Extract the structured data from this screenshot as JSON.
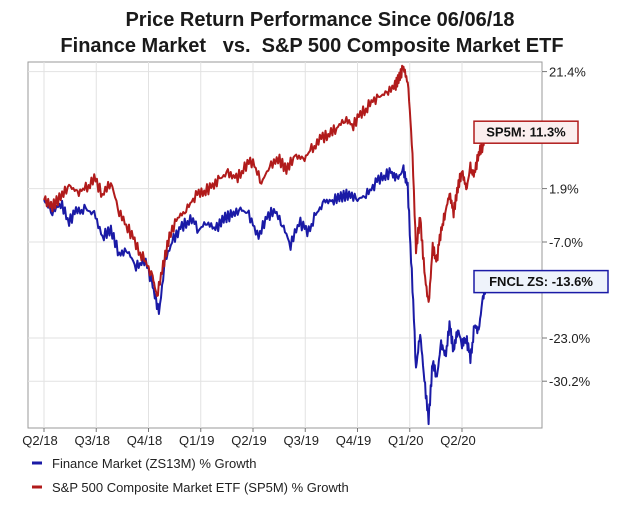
{
  "chart_data": {
    "type": "line",
    "title": "Price Return Performance Since 06/06/18",
    "subtitle": "Finance Market   vs.  S&P 500 Composite Market ETF",
    "y_ticks": [
      {
        "value": 21.4,
        "label": "21.4%"
      },
      {
        "value": 1.9,
        "label": "1.9%"
      },
      {
        "value": -7.0,
        "label": "-7.0%"
      },
      {
        "value": -23.0,
        "label": "-23.0%"
      },
      {
        "value": -30.2,
        "label": "-30.2%"
      }
    ],
    "ylim": [
      -38,
      23
    ],
    "x_ticks": [
      "Q2/18",
      "Q3/18",
      "Q4/18",
      "Q1/19",
      "Q2/19",
      "Q3/19",
      "Q4/19",
      "Q1/20",
      "Q2/20"
    ],
    "x_tick_positions": [
      0,
      0.125,
      0.25,
      0.375,
      0.5,
      0.625,
      0.75,
      0.875,
      1.0
    ],
    "grid": true,
    "legend_position": "bottom-left",
    "series": [
      {
        "name": "Finance Market (ZS13M) % Growth",
        "color": "#1a1aa6",
        "callout": "FNCL ZS: -13.6%",
        "points": [
          [
            0.0,
            0.0
          ],
          [
            0.02,
            -2.0
          ],
          [
            0.04,
            -0.5
          ],
          [
            0.06,
            -3.5
          ],
          [
            0.08,
            -1.8
          ],
          [
            0.1,
            -1.5
          ],
          [
            0.12,
            -2.5
          ],
          [
            0.14,
            -6.0
          ],
          [
            0.16,
            -5.0
          ],
          [
            0.18,
            -9.0
          ],
          [
            0.2,
            -8.5
          ],
          [
            0.22,
            -11.0
          ],
          [
            0.24,
            -10.0
          ],
          [
            0.26,
            -14.0
          ],
          [
            0.275,
            -19.0
          ],
          [
            0.29,
            -10.0
          ],
          [
            0.31,
            -6.5
          ],
          [
            0.33,
            -4.5
          ],
          [
            0.35,
            -3.0
          ],
          [
            0.37,
            -5.0
          ],
          [
            0.39,
            -3.5
          ],
          [
            0.41,
            -5.0
          ],
          [
            0.43,
            -3.0
          ],
          [
            0.45,
            -2.5
          ],
          [
            0.47,
            -1.5
          ],
          [
            0.49,
            -2.5
          ],
          [
            0.51,
            -6.0
          ],
          [
            0.53,
            -3.5
          ],
          [
            0.55,
            -1.5
          ],
          [
            0.57,
            -4.0
          ],
          [
            0.59,
            -7.5
          ],
          [
            0.61,
            -3.5
          ],
          [
            0.63,
            -5.5
          ],
          [
            0.65,
            -2.5
          ],
          [
            0.67,
            -0.5
          ],
          [
            0.69,
            0.0
          ],
          [
            0.71,
            0.5
          ],
          [
            0.73,
            1.0
          ],
          [
            0.75,
            0.0
          ],
          [
            0.77,
            1.0
          ],
          [
            0.79,
            2.5
          ],
          [
            0.81,
            4.0
          ],
          [
            0.83,
            4.5
          ],
          [
            0.845,
            3.5
          ],
          [
            0.86,
            5.0
          ],
          [
            0.87,
            2.0
          ],
          [
            0.88,
            -12.0
          ],
          [
            0.89,
            -28.0
          ],
          [
            0.9,
            -22.0
          ],
          [
            0.91,
            -30.2
          ],
          [
            0.92,
            -36.5
          ],
          [
            0.93,
            -27.0
          ],
          [
            0.94,
            -29.5
          ],
          [
            0.95,
            -24.0
          ],
          [
            0.96,
            -26.0
          ],
          [
            0.97,
            -21.0
          ],
          [
            0.98,
            -25.0
          ],
          [
            0.99,
            -21.5
          ],
          [
            1.0,
            -24.0
          ],
          [
            1.01,
            -23.0
          ],
          [
            1.02,
            -26.5
          ],
          [
            1.03,
            -21.0
          ],
          [
            1.04,
            -22.0
          ],
          [
            1.05,
            -16.0
          ],
          [
            1.06,
            -14.0
          ],
          [
            1.07,
            -13.6
          ]
        ]
      },
      {
        "name": "S&P 500 Composite Market ETF (SP5M) % Growth",
        "color": "#b11b1b",
        "callout": "SP5M: 11.3%",
        "points": [
          [
            0.0,
            0.0
          ],
          [
            0.02,
            -1.0
          ],
          [
            0.04,
            0.5
          ],
          [
            0.06,
            2.5
          ],
          [
            0.08,
            1.0
          ],
          [
            0.1,
            2.0
          ],
          [
            0.12,
            3.5
          ],
          [
            0.14,
            1.0
          ],
          [
            0.16,
            3.0
          ],
          [
            0.18,
            -2.0
          ],
          [
            0.2,
            -4.5
          ],
          [
            0.22,
            -7.5
          ],
          [
            0.24,
            -10.0
          ],
          [
            0.26,
            -13.0
          ],
          [
            0.27,
            -16.0
          ],
          [
            0.285,
            -11.0
          ],
          [
            0.3,
            -6.0
          ],
          [
            0.32,
            -3.0
          ],
          [
            0.34,
            -1.5
          ],
          [
            0.36,
            0.5
          ],
          [
            0.38,
            1.5
          ],
          [
            0.4,
            2.0
          ],
          [
            0.42,
            3.5
          ],
          [
            0.44,
            4.5
          ],
          [
            0.46,
            3.5
          ],
          [
            0.48,
            5.5
          ],
          [
            0.5,
            6.5
          ],
          [
            0.52,
            3.0
          ],
          [
            0.54,
            5.5
          ],
          [
            0.56,
            7.0
          ],
          [
            0.58,
            5.0
          ],
          [
            0.6,
            7.5
          ],
          [
            0.62,
            6.5
          ],
          [
            0.64,
            8.5
          ],
          [
            0.66,
            10.0
          ],
          [
            0.68,
            11.0
          ],
          [
            0.7,
            12.0
          ],
          [
            0.72,
            13.5
          ],
          [
            0.74,
            12.5
          ],
          [
            0.76,
            14.5
          ],
          [
            0.78,
            16.0
          ],
          [
            0.8,
            17.0
          ],
          [
            0.82,
            18.0
          ],
          [
            0.84,
            19.0
          ],
          [
            0.85,
            20.5
          ],
          [
            0.86,
            22.0
          ],
          [
            0.87,
            20.0
          ],
          [
            0.88,
            10.0
          ],
          [
            0.89,
            -8.0
          ],
          [
            0.9,
            -3.0
          ],
          [
            0.91,
            -12.0
          ],
          [
            0.92,
            -17.5
          ],
          [
            0.93,
            -8.0
          ],
          [
            0.94,
            -10.0
          ],
          [
            0.95,
            -5.0
          ],
          [
            0.96,
            -2.0
          ],
          [
            0.97,
            1.0
          ],
          [
            0.98,
            -2.0
          ],
          [
            0.99,
            2.0
          ],
          [
            1.0,
            5.0
          ],
          [
            1.01,
            1.5
          ],
          [
            1.02,
            5.5
          ],
          [
            1.03,
            4.0
          ],
          [
            1.04,
            8.0
          ],
          [
            1.05,
            9.0
          ],
          [
            1.06,
            11.0
          ],
          [
            1.07,
            11.3
          ]
        ]
      }
    ]
  }
}
